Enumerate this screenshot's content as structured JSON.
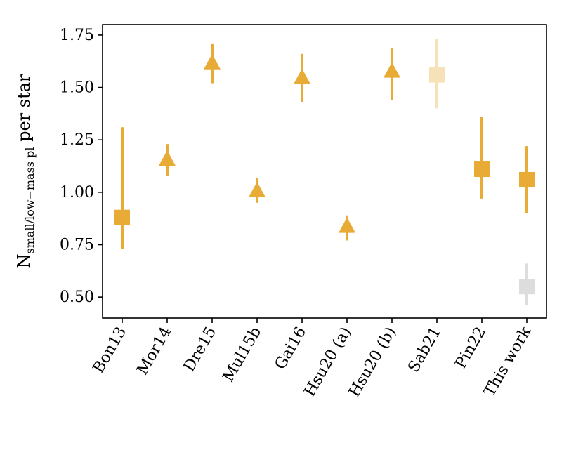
{
  "chart_data": {
    "type": "scatter",
    "ylabel_main": "N",
    "ylabel_sub": "small/low−mass pl",
    "ylabel_suffix": " per star",
    "xlabel": "",
    "ylim": [
      0.4,
      1.8
    ],
    "yticks": [
      "0.50",
      "0.75",
      "1.00",
      "1.25",
      "1.50",
      "1.75"
    ],
    "ytick_values": [
      0.5,
      0.75,
      1.0,
      1.25,
      1.5,
      1.75
    ],
    "categories": [
      "Bon13",
      "Mor14",
      "Dre15",
      "Mul15b",
      "Gai16",
      "Hsu20 (a)",
      "Hsu20 (b)",
      "Sab21",
      "Pin22",
      "This work"
    ],
    "grid": false,
    "points": [
      {
        "category": "Bon13",
        "y": 0.88,
        "ylow": 0.73,
        "yhigh": 1.31,
        "marker": "square",
        "color": "#e8ac36",
        "opacity": 1
      },
      {
        "category": "Mor14",
        "y": 1.16,
        "ylow": 1.08,
        "yhigh": 1.23,
        "marker": "triangle",
        "color": "#e8ac36",
        "opacity": 1
      },
      {
        "category": "Dre15",
        "y": 1.62,
        "ylow": 1.52,
        "yhigh": 1.71,
        "marker": "triangle",
        "color": "#e8ac36",
        "opacity": 1
      },
      {
        "category": "Mul15b",
        "y": 1.01,
        "ylow": 0.95,
        "yhigh": 1.07,
        "marker": "triangle",
        "color": "#e8ac36",
        "opacity": 1
      },
      {
        "category": "Gai16",
        "y": 1.55,
        "ylow": 1.43,
        "yhigh": 1.66,
        "marker": "triangle",
        "color": "#e8ac36",
        "opacity": 1
      },
      {
        "category": "Hsu20 (a)",
        "y": 0.84,
        "ylow": 0.77,
        "yhigh": 0.89,
        "marker": "triangle",
        "color": "#e8ac36",
        "opacity": 1
      },
      {
        "category": "Hsu20 (b)",
        "y": 1.58,
        "ylow": 1.44,
        "yhigh": 1.69,
        "marker": "triangle",
        "color": "#e8ac36",
        "opacity": 1
      },
      {
        "category": "Sab21",
        "y": 1.56,
        "ylow": 1.4,
        "yhigh": 1.73,
        "marker": "square",
        "color": "#e8ac36",
        "opacity": 0.35
      },
      {
        "category": "Pin22",
        "y": 1.11,
        "ylow": 0.97,
        "yhigh": 1.36,
        "marker": "square",
        "color": "#e8ac36",
        "opacity": 1
      },
      {
        "category": "This work",
        "y": 1.06,
        "ylow": 0.9,
        "yhigh": 1.22,
        "marker": "square",
        "color": "#e8ac36",
        "opacity": 1
      },
      {
        "category": "This work",
        "y": 0.55,
        "ylow": 0.46,
        "yhigh": 0.66,
        "marker": "square",
        "color": "#c8c8c8",
        "opacity": 0.6
      }
    ]
  }
}
